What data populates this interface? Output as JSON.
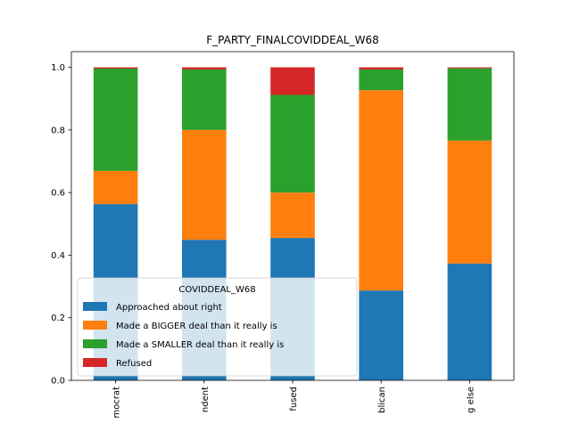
{
  "chart_data": {
    "type": "bar",
    "stacked": true,
    "title": "F_PARTY_FINALCOVIDDEAL_W68",
    "xlabel": "",
    "ylabel": "",
    "ylim": [
      0,
      1.05
    ],
    "yticks": [
      "0.0",
      "0.2",
      "0.4",
      "0.6",
      "0.8",
      "1.0"
    ],
    "categories": [
      "mocrat",
      "ndent",
      "fused",
      "blican",
      "g else"
    ],
    "series": [
      {
        "name": "Approached about right",
        "color": "#1f77b4",
        "values": [
          0.563,
          0.449,
          0.455,
          0.287,
          0.373
        ]
      },
      {
        "name": "Made a BIGGER deal than it really is",
        "color": "#ff7f0e",
        "values": [
          0.106,
          0.351,
          0.145,
          0.64,
          0.393
        ]
      },
      {
        "name": "Made a SMALLER deal than it really is",
        "color": "#2ca02c",
        "values": [
          0.327,
          0.193,
          0.312,
          0.066,
          0.231
        ]
      },
      {
        "name": "Refused",
        "color": "#d62728",
        "values": [
          0.004,
          0.007,
          0.088,
          0.007,
          0.003
        ]
      }
    ],
    "legend": {
      "title": "COVIDDEAL_W68",
      "placement": "lower-left"
    },
    "grid": false
  }
}
